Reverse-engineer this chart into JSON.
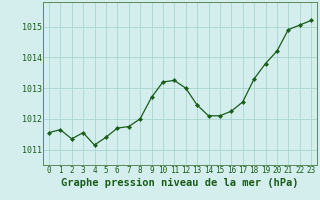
{
  "x": [
    0,
    1,
    2,
    3,
    4,
    5,
    6,
    7,
    8,
    9,
    10,
    11,
    12,
    13,
    14,
    15,
    16,
    17,
    18,
    19,
    20,
    21,
    22,
    23
  ],
  "y": [
    1011.55,
    1011.65,
    1011.35,
    1011.55,
    1011.15,
    1011.4,
    1011.7,
    1011.75,
    1012.0,
    1012.7,
    1013.2,
    1013.25,
    1013.0,
    1012.45,
    1012.1,
    1012.1,
    1012.25,
    1012.55,
    1013.3,
    1013.8,
    1014.2,
    1014.9,
    1015.05,
    1015.2
  ],
  "line_color": "#1a5c1a",
  "marker": "D",
  "marker_size": 2.2,
  "bg_color": "#d4eeed",
  "grid_color": "#aad4d0",
  "title": "Graphe pression niveau de la mer (hPa)",
  "xlabel_ticks": [
    "0",
    "1",
    "2",
    "3",
    "4",
    "5",
    "6",
    "7",
    "8",
    "9",
    "10",
    "11",
    "12",
    "13",
    "14",
    "15",
    "16",
    "17",
    "18",
    "19",
    "20",
    "21",
    "22",
    "23"
  ],
  "ylim": [
    1010.5,
    1015.8
  ],
  "yticks": [
    1011,
    1012,
    1013,
    1014,
    1015
  ],
  "title_color": "#1a5c1a",
  "title_fontsize": 7.5,
  "tick_fontsize": 6.0,
  "spine_color": "#5a8a5a"
}
